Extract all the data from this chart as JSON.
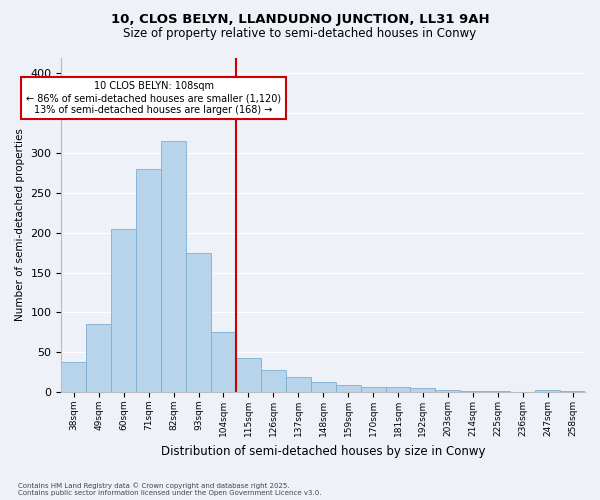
{
  "title1": "10, CLOS BELYN, LLANDUDNO JUNCTION, LL31 9AH",
  "title2": "Size of property relative to semi-detached houses in Conwy",
  "xlabel": "Distribution of semi-detached houses by size in Conwy",
  "ylabel": "Number of semi-detached properties",
  "bar_labels": [
    "38sqm",
    "49sqm",
    "60sqm",
    "71sqm",
    "82sqm",
    "93sqm",
    "104sqm",
    "115sqm",
    "126sqm",
    "137sqm",
    "148sqm",
    "159sqm",
    "170sqm",
    "181sqm",
    "192sqm",
    "203sqm",
    "214sqm",
    "225sqm",
    "236sqm",
    "247sqm",
    "258sqm"
  ],
  "bar_values": [
    38,
    86,
    205,
    280,
    315,
    175,
    75,
    43,
    28,
    19,
    13,
    9,
    6,
    6,
    5,
    3,
    2,
    1,
    0,
    3,
    2
  ],
  "bar_color": "#b8d4ea",
  "bar_edge_color": "#7aafd4",
  "vline_x_label": "115sqm",
  "vline_color": "#cc0000",
  "annotation_title": "10 CLOS BELYN: 108sqm",
  "annotation_line1": "← 86% of semi-detached houses are smaller (1,120)",
  "annotation_line2": "13% of semi-detached houses are larger (168) →",
  "annotation_box_color": "#ffffff",
  "annotation_box_edge": "#cc0000",
  "ylim": [
    0,
    420
  ],
  "yticks": [
    0,
    50,
    100,
    150,
    200,
    250,
    300,
    350,
    400
  ],
  "footnote1": "Contains HM Land Registry data © Crown copyright and database right 2025.",
  "footnote2": "Contains public sector information licensed under the Open Government Licence v3.0.",
  "background_color": "#eef2f8",
  "grid_color": "#ffffff"
}
